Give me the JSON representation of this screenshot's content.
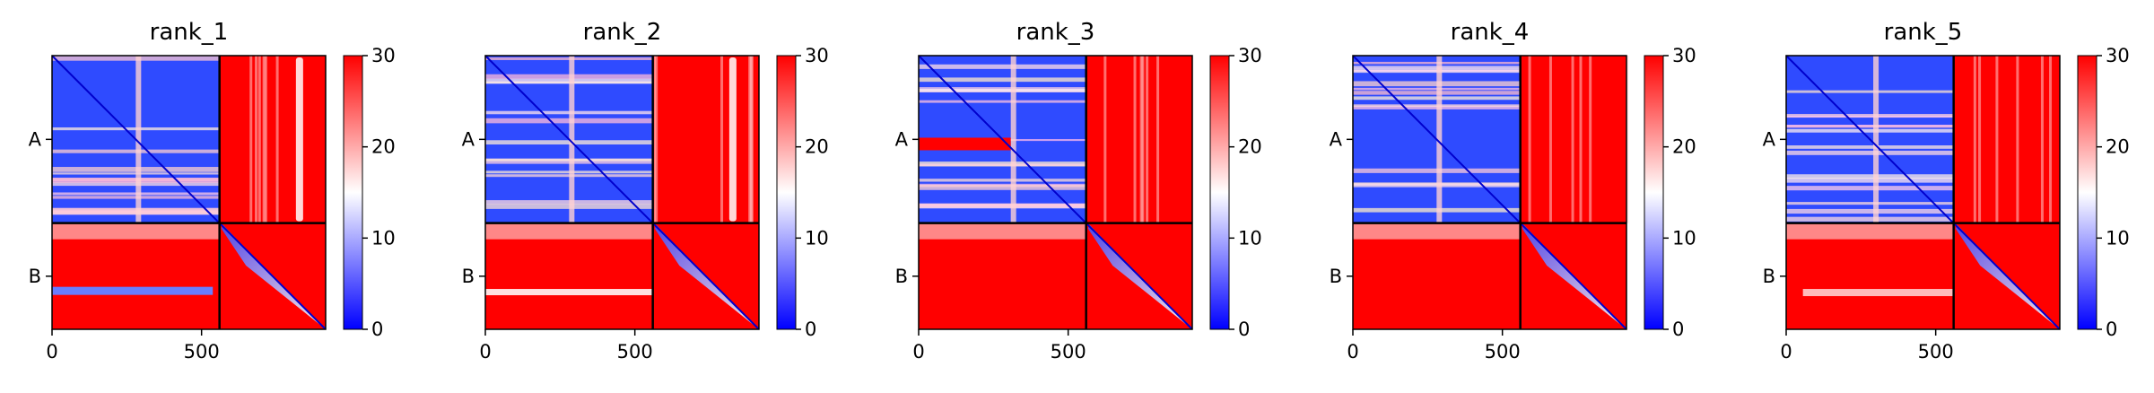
{
  "chart_data": [
    {
      "type": "heatmap",
      "title": "rank_1",
      "chains": [
        {
          "name": "A",
          "length": 560
        },
        {
          "name": "B",
          "length": 355
        }
      ],
      "x_ticks": [
        "0",
        "500"
      ],
      "y_tick_labels": [
        "A",
        "B"
      ],
      "colorbar": {
        "min": 0,
        "max": 30,
        "ticks": [
          "0",
          "10",
          "20",
          "30"
        ],
        "colormap": "bwr"
      }
    },
    {
      "type": "heatmap",
      "title": "rank_2",
      "chains": [
        {
          "name": "A",
          "length": 560
        },
        {
          "name": "B",
          "length": 355
        }
      ],
      "x_ticks": [
        "0",
        "500"
      ],
      "y_tick_labels": [
        "A",
        "B"
      ],
      "colorbar": {
        "min": 0,
        "max": 30,
        "ticks": [
          "0",
          "10",
          "20",
          "30"
        ],
        "colormap": "bwr"
      }
    },
    {
      "type": "heatmap",
      "title": "rank_3",
      "chains": [
        {
          "name": "A",
          "length": 560
        },
        {
          "name": "B",
          "length": 355
        }
      ],
      "x_ticks": [
        "0",
        "500"
      ],
      "y_tick_labels": [
        "A",
        "B"
      ],
      "colorbar": {
        "min": 0,
        "max": 30,
        "ticks": [
          "0",
          "10",
          "20",
          "30"
        ],
        "colormap": "bwr"
      }
    },
    {
      "type": "heatmap",
      "title": "rank_4",
      "chains": [
        {
          "name": "A",
          "length": 560
        },
        {
          "name": "B",
          "length": 355
        }
      ],
      "x_ticks": [
        "0",
        "500"
      ],
      "y_tick_labels": [
        "A",
        "B"
      ],
      "colorbar": {
        "min": 0,
        "max": 30,
        "ticks": [
          "0",
          "10",
          "20",
          "30"
        ],
        "colormap": "bwr"
      }
    },
    {
      "type": "heatmap",
      "title": "rank_5",
      "chains": [
        {
          "name": "A",
          "length": 560
        },
        {
          "name": "B",
          "length": 355
        }
      ],
      "x_ticks": [
        "0",
        "500"
      ],
      "y_tick_labels": [
        "A",
        "B"
      ],
      "colorbar": {
        "min": 0,
        "max": 30,
        "ticks": [
          "0",
          "10",
          "20",
          "30"
        ],
        "colormap": "bwr"
      }
    }
  ],
  "colors": {
    "low": "#0000ff",
    "mid": "#ffffff",
    "high": "#ff0000"
  }
}
